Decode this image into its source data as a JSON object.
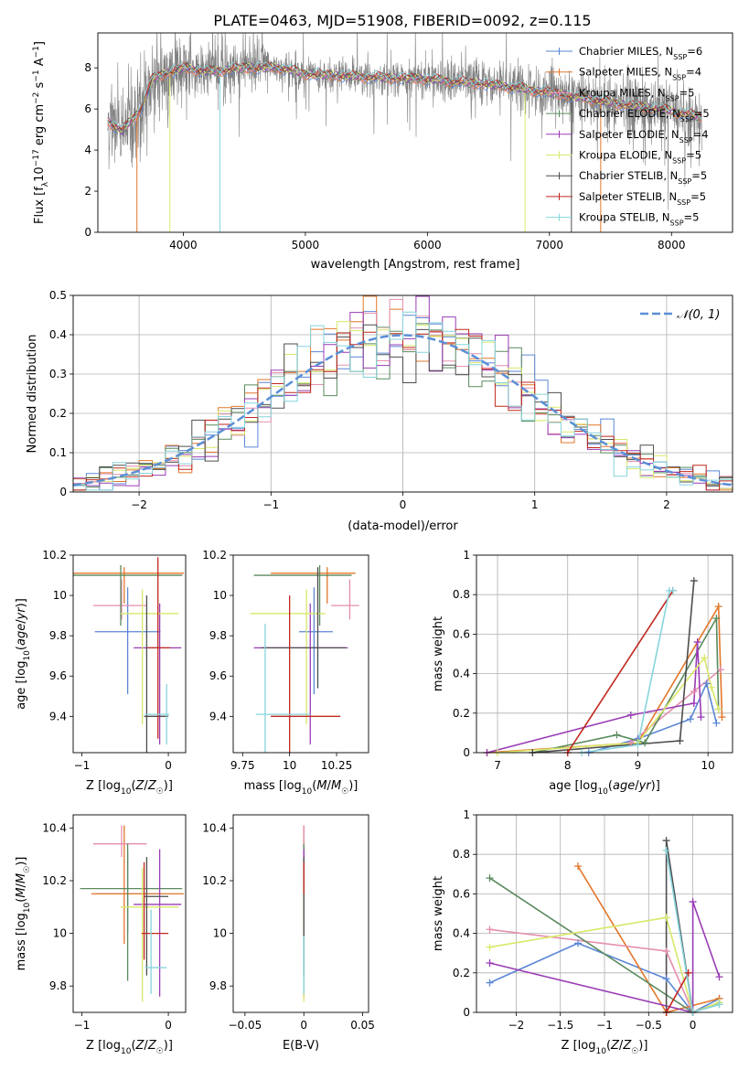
{
  "title": "PLATE=0463, MJD=51908, FIBERID=0092, z=0.115",
  "colors": {
    "Chabrier MILES": "#5b86d6",
    "Salpeter MILES": "#e3772a",
    "Kroupa MILES": "#e58fae",
    "Chabrier ELODIE": "#5a8a5e",
    "Salpeter ELODIE": "#9a3cb5",
    "Kroupa ELODIE": "#d9e86a",
    "Chabrier STELIB": "#4d4d4d",
    "Salpeter STELIB": "#c0281f",
    "Kroupa STELIB": "#86d4dc",
    "data": "#808080"
  },
  "chart_data": [
    {
      "id": "spectrum",
      "type": "line",
      "xlabel": "wavelength [Angstrom, rest frame]",
      "ylabel": "Flux [f_λ10^-17 erg cm^-2 s^-1 A^-1]",
      "xlim": [
        3300,
        8500
      ],
      "ylim": [
        0,
        9.7
      ],
      "xticks": [
        4000,
        5000,
        6000,
        7000,
        8000
      ],
      "yticks": [
        0,
        2,
        4,
        6,
        8
      ],
      "grid": false,
      "legend": "right",
      "legend_entries": [
        {
          "name": "Chabrier MILES",
          "nssp": "6"
        },
        {
          "name": "Salpeter MILES",
          "nssp": "4"
        },
        {
          "name": "Kroupa MILES",
          "nssp": "5"
        },
        {
          "name": "Chabrier ELODIE",
          "nssp": "5"
        },
        {
          "name": "Salpeter ELODIE",
          "nssp": "4"
        },
        {
          "name": "Kroupa ELODIE",
          "nssp": "5"
        },
        {
          "name": "Chabrier STELIB",
          "nssp": "5"
        },
        {
          "name": "Salpeter STELIB",
          "nssp": "5"
        },
        {
          "name": "Kroupa STELIB",
          "nssp": "5"
        }
      ],
      "continuum": {
        "x": [
          3380,
          3500,
          3650,
          3750,
          3850,
          4000,
          4200,
          4500,
          4800,
          5000,
          5500,
          6000,
          6500,
          7000,
          7500,
          8000,
          8250
        ],
        "y": [
          5.4,
          4.9,
          6.0,
          7.5,
          7.7,
          8.0,
          7.8,
          8.0,
          8.0,
          7.7,
          7.55,
          7.45,
          7.2,
          6.8,
          6.3,
          5.9,
          5.6
        ]
      }
    },
    {
      "id": "residuals",
      "type": "step",
      "xlabel": "(data-model)/error",
      "ylabel": "Normed distribution",
      "xlim": [
        -2.5,
        2.5
      ],
      "ylim": [
        0,
        0.5
      ],
      "xticks": [
        -2,
        -1,
        0,
        1,
        2
      ],
      "yticks": [
        0.0,
        0.1,
        0.2,
        0.3,
        0.4,
        0.5
      ],
      "grid": true,
      "legend": "top-right",
      "gaussian_label": "𝒩(0, 1)",
      "bin_width": 0.1
    },
    {
      "id": "age-vs-Z",
      "type": "errorbar",
      "xlabel": "Z [log10(Z/Z☉)]",
      "ylabel": "age  [log10(age/yr)]",
      "xlim": [
        -1.1,
        0.2
      ],
      "ylim": [
        9.22,
        10.2
      ],
      "xticks": [
        -1,
        0
      ],
      "yticks": [
        9.4,
        9.6,
        9.8,
        10.0,
        10.2
      ],
      "points": [
        {
          "m": "Chabrier MILES",
          "x": -0.47,
          "xe": [
            0.38,
            0.38
          ],
          "y": 9.82,
          "ye": [
            0.31,
            0.22
          ]
        },
        {
          "m": "Salpeter MILES",
          "x": -0.51,
          "xe": [
            0.59,
            0.69
          ],
          "y": 10.11,
          "ye": [
            0.15,
            0.03
          ]
        },
        {
          "m": "Kroupa MILES",
          "x": -0.54,
          "xe": [
            0.33,
            0.29
          ],
          "y": 9.95,
          "ye": [
            0.07,
            0.13
          ]
        },
        {
          "m": "Chabrier ELODIE",
          "x": -0.55,
          "xe": [
            0.55,
            0.71
          ],
          "y": 10.1,
          "ye": [
            0.25,
            0.05
          ]
        },
        {
          "m": "Salpeter ELODIE",
          "x": -0.1,
          "xe": [
            0.3,
            0.25
          ],
          "y": 9.74,
          "ye": [
            0.48,
            0.22
          ]
        },
        {
          "m": "Kroupa ELODIE",
          "x": -0.3,
          "xe": [
            0.25,
            0.42
          ],
          "y": 9.91,
          "ye": [
            0.55,
            0.12
          ]
        },
        {
          "m": "Chabrier STELIB",
          "x": -0.25,
          "xe": [
            0.03,
            0.25
          ],
          "y": 9.4,
          "ye": [
            0.2,
            0.6
          ]
        },
        {
          "m": "Salpeter STELIB",
          "x": -0.12,
          "xe": [
            0.12,
            0.14
          ],
          "y": 9.74,
          "ye": [
            0.45,
            0.45
          ]
        },
        {
          "m": "Kroupa STELIB",
          "x": -0.02,
          "xe": [
            0.25,
            0.03
          ],
          "y": 9.41,
          "ye": [
            0.15,
            0.15
          ]
        }
      ]
    },
    {
      "id": "age-vs-mass",
      "type": "errorbar",
      "xlabel": "mass [log10(M/M☉)]",
      "ylabel": "",
      "xlim": [
        9.7,
        10.42
      ],
      "ylim": [
        9.22,
        10.2
      ],
      "xticks": [
        9.75,
        10.0,
        10.25
      ],
      "yticks": [
        9.4,
        9.6,
        9.8,
        10.0,
        10.2
      ],
      "points": [
        {
          "m": "Chabrier MILES",
          "x": 10.13,
          "xe": [
            0.08,
            0.1
          ],
          "y": 9.82,
          "ye": [
            0.31,
            0.22
          ]
        },
        {
          "m": "Salpeter MILES",
          "x": 10.2,
          "xe": [
            0.3,
            0.15
          ],
          "y": 10.11,
          "ye": [
            0.15,
            0.03
          ]
        },
        {
          "m": "Kroupa MILES",
          "x": 10.32,
          "xe": [
            0.1,
            0.05
          ],
          "y": 9.95,
          "ye": [
            0.07,
            0.13
          ]
        },
        {
          "m": "Chabrier ELODIE",
          "x": 10.16,
          "xe": [
            0.35,
            0.17
          ],
          "y": 10.1,
          "ye": [
            0.25,
            0.05
          ]
        },
        {
          "m": "Salpeter ELODIE",
          "x": 10.11,
          "xe": [
            0.3,
            0.2
          ],
          "y": 9.74,
          "ye": [
            0.48,
            0.22
          ]
        },
        {
          "m": "Kroupa ELODIE",
          "x": 10.09,
          "xe": [
            0.3,
            0.1
          ],
          "y": 9.91,
          "ye": [
            0.55,
            0.12
          ]
        },
        {
          "m": "Chabrier STELIB",
          "x": 10.15,
          "xe": [
            0.3,
            0.15
          ],
          "y": 9.74,
          "ye": [
            0.2,
            0.4
          ]
        },
        {
          "m": "Salpeter STELIB",
          "x": 10.0,
          "xe": [
            0.1,
            0.27
          ],
          "y": 9.4,
          "ye": [
            0.2,
            0.6
          ]
        },
        {
          "m": "Kroupa STELIB",
          "x": 9.87,
          "xe": [
            0.05,
            0.24
          ],
          "y": 9.41,
          "ye": [
            0.2,
            0.45
          ]
        }
      ]
    },
    {
      "id": "mass-weight-vs-age",
      "type": "line",
      "xlabel": "age  [log10(age/yr)]",
      "ylabel": "mass weight",
      "xlim": [
        6.7,
        10.35
      ],
      "ylim": [
        0,
        1.0
      ],
      "xticks": [
        7,
        8,
        9,
        10
      ],
      "yticks": [
        0.0,
        0.2,
        0.4,
        0.6,
        0.8,
        1.0
      ],
      "grid": true,
      "series": [
        {
          "m": "Chabrier MILES",
          "x": [
            8.3,
            9.0,
            9.75,
            9.98,
            10.12
          ],
          "y": [
            0.0,
            0.07,
            0.17,
            0.35,
            0.15
          ]
        },
        {
          "m": "Salpeter MILES",
          "x": [
            6.85,
            9.0,
            10.15,
            10.2
          ],
          "y": [
            0.0,
            0.05,
            0.74,
            0.18
          ]
        },
        {
          "m": "Kroupa MILES",
          "x": [
            8.9,
            9.8,
            10.18
          ],
          "y": [
            0.05,
            0.31,
            0.42
          ]
        },
        {
          "m": "Chabrier ELODIE",
          "x": [
            7.5,
            8.7,
            9.1,
            10.12,
            10.15
          ],
          "y": [
            0.0,
            0.09,
            0.05,
            0.68,
            0.22
          ]
        },
        {
          "m": "Salpeter ELODIE",
          "x": [
            6.85,
            8.9,
            9.8,
            9.85,
            9.9
          ],
          "y": [
            0.0,
            0.19,
            0.25,
            0.56,
            0.18
          ]
        },
        {
          "m": "Kroupa ELODIE",
          "x": [
            7.0,
            9.0,
            9.95,
            10.05,
            10.15
          ],
          "y": [
            0.0,
            0.05,
            0.48,
            0.33,
            0.22
          ]
        },
        {
          "m": "Chabrier STELIB",
          "x": [
            7.5,
            9.6,
            9.8
          ],
          "y": [
            0.0,
            0.06,
            0.87
          ]
        },
        {
          "m": "Salpeter STELIB",
          "x": [
            8.0,
            9.5
          ],
          "y": [
            0.0,
            0.82
          ]
        },
        {
          "m": "Kroupa STELIB",
          "x": [
            8.2,
            9.0,
            9.45,
            9.5
          ],
          "y": [
            0.0,
            0.04,
            0.82,
            0.82
          ]
        }
      ]
    },
    {
      "id": "mass-vs-Z",
      "type": "errorbar",
      "xlabel": "Z [log10(Z/Z☉)]",
      "ylabel": "mass [log10(M/M☉)]",
      "xlim": [
        -1.1,
        0.2
      ],
      "ylim": [
        9.7,
        10.45
      ],
      "xticks": [
        -1,
        0
      ],
      "yticks": [
        9.8,
        10.0,
        10.2,
        10.4
      ],
      "points": [
        {
          "m": "Chabrier MILES",
          "x": -0.47,
          "xe": [
            0.38,
            0.38
          ],
          "y": 10.15,
          "ye": [
            0.15,
            0.16
          ]
        },
        {
          "m": "Salpeter MILES",
          "x": -0.51,
          "xe": [
            0.38,
            0.69
          ],
          "y": 10.15,
          "ye": [
            0.19,
            0.26
          ]
        },
        {
          "m": "Kroupa MILES",
          "x": -0.54,
          "xe": [
            0.33,
            0.29
          ],
          "y": 10.34,
          "ye": [
            0.05,
            0.07
          ]
        },
        {
          "m": "Chabrier ELODIE",
          "x": -0.47,
          "xe": [
            0.55,
            0.63
          ],
          "y": 10.17,
          "ye": [
            0.35,
            0.17
          ]
        },
        {
          "m": "Salpeter ELODIE",
          "x": -0.1,
          "xe": [
            0.3,
            0.25
          ],
          "y": 10.11,
          "ye": [
            0.35,
            0.21
          ]
        },
        {
          "m": "Kroupa ELODIE",
          "x": -0.3,
          "xe": [
            0.25,
            0.42
          ],
          "y": 10.1,
          "ye": [
            0.36,
            0.15
          ]
        },
        {
          "m": "Chabrier STELIB",
          "x": -0.25,
          "xe": [
            0.03,
            0.25
          ],
          "y": 10.14,
          "ye": [
            0.3,
            0.15
          ]
        },
        {
          "m": "Salpeter STELIB",
          "x": -0.28,
          "xe": [
            0.03,
            0.28
          ],
          "y": 10.0,
          "ye": [
            0.1,
            0.27
          ]
        },
        {
          "m": "Kroupa STELIB",
          "x": -0.2,
          "xe": [
            0.07,
            0.18
          ],
          "y": 9.87,
          "ye": [
            0.1,
            0.22
          ]
        }
      ]
    },
    {
      "id": "mass-vs-EBV",
      "type": "errorbar",
      "xlabel": "E(B-V)",
      "ylabel": "",
      "xlim": [
        -0.06,
        0.055
      ],
      "ylim": [
        9.7,
        10.45
      ],
      "xticks": [
        -0.05,
        0.0,
        0.05
      ],
      "yticks": [
        9.8,
        10.0,
        10.2,
        10.4
      ],
      "points": [
        {
          "m": "Chabrier MILES",
          "x": 0.0,
          "xe": [
            0,
            0
          ],
          "y": 10.15,
          "ye": [
            0.15,
            0.16
          ]
        },
        {
          "m": "Salpeter MILES",
          "x": 0.0,
          "xe": [
            0,
            0
          ],
          "y": 10.15,
          "ye": [
            0.19,
            0.26
          ]
        },
        {
          "m": "Kroupa MILES",
          "x": 0.0,
          "xe": [
            0,
            0
          ],
          "y": 10.34,
          "ye": [
            0.05,
            0.07
          ]
        },
        {
          "m": "Chabrier ELODIE",
          "x": 0.0,
          "xe": [
            0,
            0
          ],
          "y": 10.17,
          "ye": [
            0.35,
            0.17
          ]
        },
        {
          "m": "Salpeter ELODIE",
          "x": 0.0,
          "xe": [
            0,
            0
          ],
          "y": 10.11,
          "ye": [
            0.35,
            0.21
          ]
        },
        {
          "m": "Kroupa ELODIE",
          "x": 0.0,
          "xe": [
            0,
            0
          ],
          "y": 10.1,
          "ye": [
            0.36,
            0.15
          ]
        },
        {
          "m": "Chabrier STELIB",
          "x": 0.0,
          "xe": [
            0,
            0
          ],
          "y": 10.14,
          "ye": [
            0.3,
            0.15
          ]
        },
        {
          "m": "Salpeter STELIB",
          "x": 0.0,
          "xe": [
            0,
            0
          ],
          "y": 10.2,
          "ye": [
            0.05,
            0.07
          ]
        },
        {
          "m": "Kroupa STELIB",
          "x": 0.0,
          "xe": [
            0,
            0
          ],
          "y": 9.87,
          "ye": [
            0.1,
            0.12
          ]
        }
      ]
    },
    {
      "id": "mass-weight-vs-Z",
      "type": "line",
      "xlabel": "Z [log10(Z/Z☉)]",
      "ylabel": "mass weight",
      "xlim": [
        -2.45,
        0.45
      ],
      "ylim": [
        0,
        1.0
      ],
      "xticks": [
        -2.0,
        -1.5,
        -1.0,
        -0.5,
        0.0
      ],
      "yticks": [
        0.0,
        0.2,
        0.4,
        0.6,
        0.8,
        1.0
      ],
      "grid": true,
      "series": [
        {
          "m": "Chabrier MILES",
          "x": [
            -2.3,
            -1.3,
            -0.3,
            0.0,
            0.3
          ],
          "y": [
            0.15,
            0.35,
            0.17,
            0.0,
            0.07
          ]
        },
        {
          "m": "Salpeter MILES",
          "x": [
            -1.3,
            -0.3,
            0.3
          ],
          "y": [
            0.74,
            0.0,
            0.07
          ]
        },
        {
          "m": "Kroupa MILES",
          "x": [
            -2.3,
            -0.3,
            0.0,
            0.3
          ],
          "y": [
            0.42,
            0.31,
            0.0,
            0.05
          ]
        },
        {
          "m": "Chabrier ELODIE",
          "x": [
            -2.3,
            0.0,
            0.3
          ],
          "y": [
            0.68,
            0.0,
            0.05
          ]
        },
        {
          "m": "Salpeter ELODIE",
          "x": [
            -2.3,
            0.0,
            0.0,
            0.3
          ],
          "y": [
            0.25,
            0.0,
            0.56,
            0.18
          ]
        },
        {
          "m": "Kroupa ELODIE",
          "x": [
            -2.3,
            -0.3,
            0.0,
            0.3
          ],
          "y": [
            0.33,
            0.48,
            0.0,
            0.05
          ]
        },
        {
          "m": "Chabrier STELIB",
          "x": [
            -0.3,
            -0.3,
            0.0
          ],
          "y": [
            0.0,
            0.87,
            0.0
          ]
        },
        {
          "m": "Salpeter STELIB",
          "x": [
            -0.3,
            -0.05
          ],
          "y": [
            0.0,
            0.2
          ]
        },
        {
          "m": "Kroupa STELIB",
          "x": [
            -0.3,
            0.0,
            0.3
          ],
          "y": [
            0.82,
            0.0,
            0.04
          ]
        }
      ]
    }
  ]
}
